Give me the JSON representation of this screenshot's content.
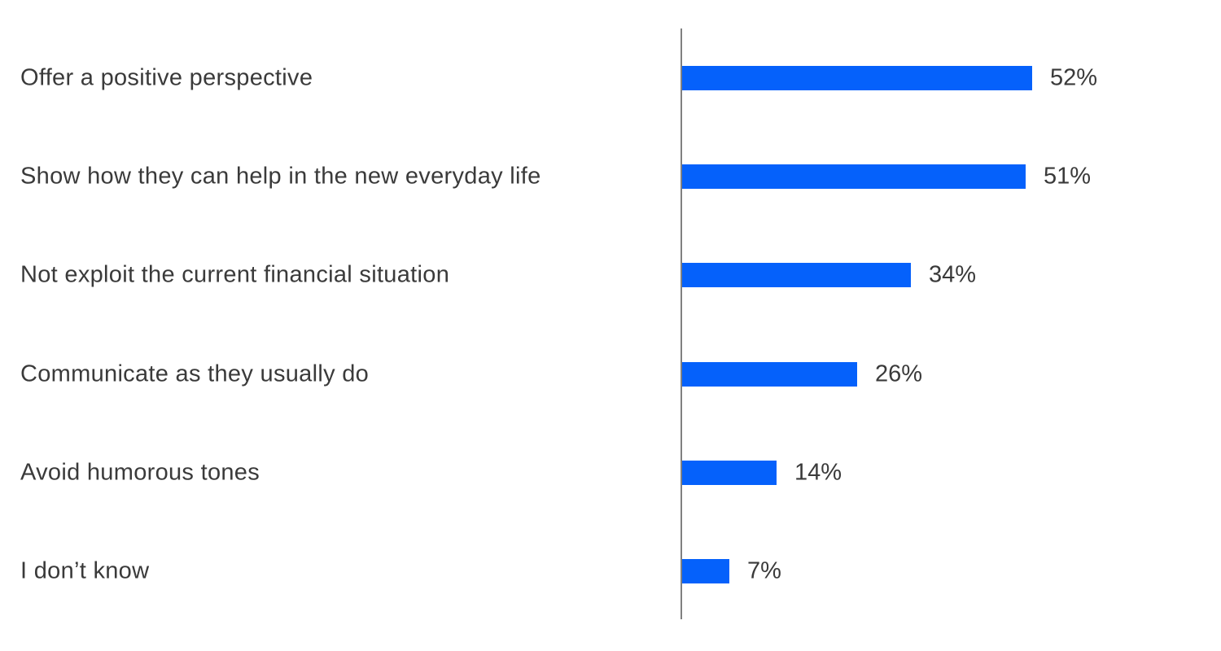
{
  "chart_data": {
    "type": "bar",
    "orientation": "horizontal",
    "title": "",
    "xlabel": "",
    "ylabel": "",
    "categories": [
      "Offer a positive perspective",
      "Show how they can help in the new everyday life",
      "Not exploit the current financial situation",
      "Communicate as they usually do",
      "Avoid humorous tones",
      "I don’t know"
    ],
    "values": [
      52,
      51,
      34,
      26,
      14,
      7
    ],
    "value_labels": [
      "52%",
      "51%",
      "34%",
      "26%",
      "14%",
      "7%"
    ],
    "xlim": [
      0,
      80
    ],
    "gridlines": false,
    "axis_ticks": false,
    "legend": null,
    "colors": {
      "bar": "#0561fb",
      "axis_line": "#808080",
      "text": "#3a3a3a"
    }
  }
}
